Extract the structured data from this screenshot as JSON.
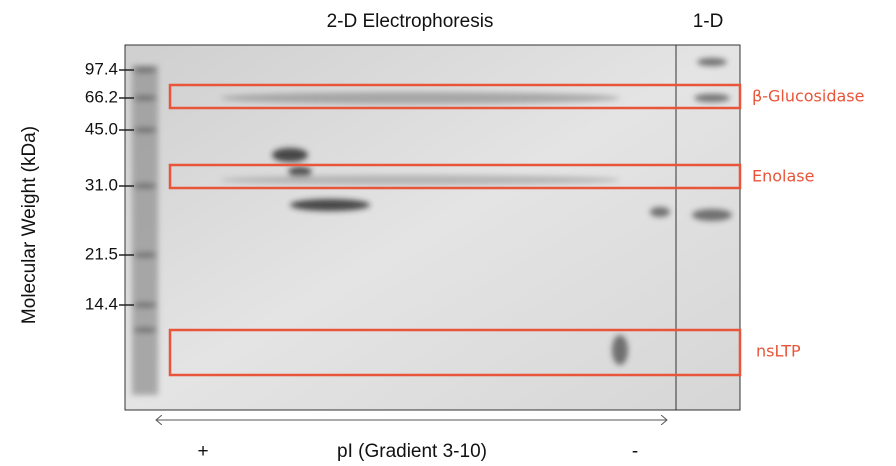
{
  "header": {
    "title": "2-D Electrophoresis",
    "lane_title": "1-D"
  },
  "y_axis": {
    "label": "Molecular Weight (kDa)",
    "markers": [
      "97.4",
      "66.2",
      "45.0",
      "31.0",
      "21.5",
      "14.4"
    ]
  },
  "bands": [
    {
      "label": "β-Glucosidase"
    },
    {
      "label": "Enolase"
    },
    {
      "label": "nsLTP"
    }
  ],
  "x_axis": {
    "label": "pI (Gradient 3-10)",
    "left": "+",
    "right": "-"
  }
}
